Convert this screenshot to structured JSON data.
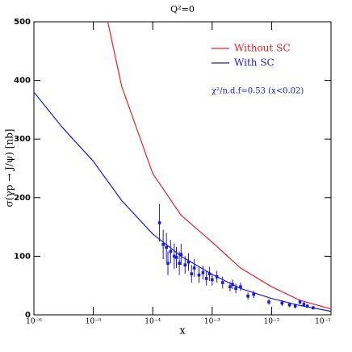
{
  "chart_data": {
    "type": "line",
    "title": "Q²=0",
    "x_label": "x",
    "y_label": "σ(γp → J/ψ) [nb]",
    "annotation": "χ²/n.d.f=0.53 (x<0.02)",
    "xscale": "log",
    "xlim": [
      1e-06,
      0.1
    ],
    "xticks": [
      {
        "value": 1e-06,
        "label": "10⁻⁶"
      },
      {
        "value": 1e-05,
        "label": "10⁻⁵"
      },
      {
        "value": 0.0001,
        "label": "10⁻⁴"
      },
      {
        "value": 0.001,
        "label": "10⁻³"
      },
      {
        "value": 0.01,
        "label": "10⁻²"
      },
      {
        "value": 0.1,
        "label": "10⁻¹"
      }
    ],
    "ylim": [
      0,
      500
    ],
    "yticks": [
      0,
      100,
      200,
      300,
      400,
      500
    ],
    "legend": "upper right",
    "series": [
      {
        "name": "Without SC",
        "color": "#e8202a",
        "x": [
          1.75e-05,
          3e-05,
          0.0001,
          0.0003,
          0.001,
          0.003,
          0.01,
          0.03,
          0.1
        ],
        "values": [
          500,
          390,
          241,
          170,
          124,
          80,
          48,
          25,
          10
        ]
      },
      {
        "name": "With SC",
        "color": "#1a1ad8",
        "x": [
          1e-06,
          3e-06,
          1e-05,
          3e-05,
          0.0001,
          0.0003,
          0.001,
          0.003,
          0.01,
          0.03,
          0.1
        ],
        "values": [
          380,
          320,
          262,
          195,
          138,
          100,
          69,
          45,
          28,
          16,
          6
        ]
      },
      {
        "color": "#1a1ad8",
        "marker": "square",
        "x": [
          0.00013,
          0.00015,
          0.00017,
          0.00018,
          0.0002,
          0.00023,
          0.00025,
          0.00028,
          0.0003,
          0.00035,
          0.0004,
          0.00045,
          0.0005,
          0.0006,
          0.0007,
          0.0008,
          0.0009,
          0.001,
          0.0012,
          0.0015,
          0.002,
          0.0022,
          0.0025,
          0.003,
          0.004,
          0.005,
          0.009,
          0.015,
          0.02,
          0.025,
          0.03,
          0.035,
          0.04,
          0.05
        ],
        "values": [
          157,
          120,
          115,
          88,
          108,
          100,
          98,
          88,
          103,
          85,
          90,
          70,
          80,
          68,
          72,
          62,
          70,
          60,
          65,
          55,
          48,
          52,
          45,
          48,
          32,
          35,
          22,
          20,
          17,
          15,
          22,
          18,
          15,
          12
        ],
        "errors": [
          32,
          25,
          25,
          20,
          20,
          22,
          18,
          20,
          18,
          15,
          15,
          15,
          15,
          13,
          12,
          12,
          12,
          10,
          10,
          10,
          8,
          8,
          8,
          7,
          6,
          6,
          5,
          5,
          4,
          4,
          4,
          4,
          3,
          3
        ]
      }
    ]
  }
}
